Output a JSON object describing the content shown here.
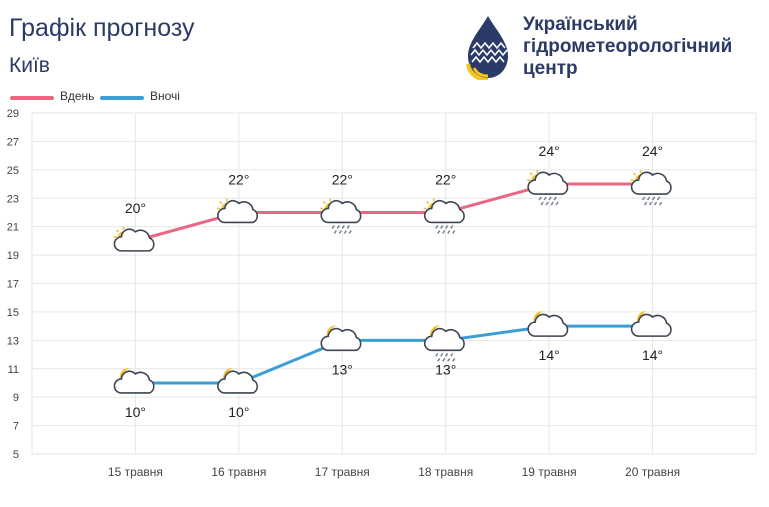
{
  "header": {
    "title": "Графік прогнозу",
    "city": "Київ"
  },
  "organization": {
    "line1": "Український",
    "line2": "гідрометеорологічний",
    "line3": "центр",
    "logo_icon": "water-drop-sun-logo-icon"
  },
  "legend": {
    "day_label": "Вдень",
    "night_label": "Вночі"
  },
  "colors": {
    "day": "#ea6783",
    "night": "#3b9fd6",
    "grid": "#e6e6e6",
    "text": "#222222",
    "brand": "#2b3a67"
  },
  "chart_data": {
    "type": "line",
    "categories": [
      "15 травня",
      "16 травня",
      "17 травня",
      "18 травня",
      "19 травня",
      "20 травня"
    ],
    "series": [
      {
        "name": "Вдень",
        "values": [
          20,
          22,
          22,
          22,
          24,
          24
        ],
        "labels": [
          "20°",
          "22°",
          "22°",
          "22°",
          "24°",
          "24°"
        ],
        "icons": [
          "sun-cloud-icon",
          "sun-cloud-icon",
          "sun-cloud-rain-icon",
          "sun-cloud-rain-icon",
          "sun-cloud-rain-icon",
          "sun-cloud-rain-icon"
        ]
      },
      {
        "name": "Вночі",
        "values": [
          10,
          10,
          13,
          13,
          14,
          14
        ],
        "labels": [
          "10°",
          "10°",
          "13°",
          "13°",
          "14°",
          "14°"
        ],
        "icons": [
          "moon-cloud-icon",
          "moon-cloud-icon",
          "moon-cloud-icon",
          "moon-cloud-rain-icon",
          "moon-cloud-icon",
          "moon-cloud-icon"
        ]
      }
    ],
    "ylim": [
      5,
      29
    ],
    "yticks": [
      5,
      7,
      9,
      11,
      13,
      15,
      17,
      19,
      21,
      23,
      25,
      27,
      29
    ],
    "grid": true,
    "legend_position": "top-left"
  }
}
